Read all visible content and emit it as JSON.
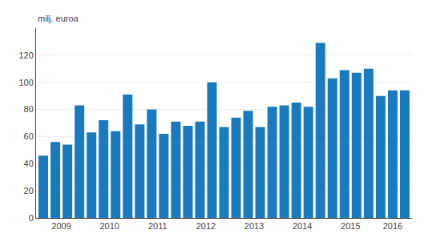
{
  "chart_data": {
    "type": "bar",
    "ylabel": "milj. euroa",
    "categories": [
      "2009",
      null,
      null,
      null,
      "2010",
      null,
      null,
      null,
      "2011",
      null,
      null,
      null,
      "2012",
      null,
      null,
      null,
      "2013",
      null,
      null,
      null,
      "2014",
      null,
      null,
      null,
      "2015",
      null,
      null,
      null,
      "2016",
      null,
      null
    ],
    "values": [
      46,
      56,
      54,
      83,
      63,
      72,
      64,
      91,
      69,
      80,
      62,
      71,
      68,
      71,
      100,
      67,
      74,
      79,
      67,
      82,
      83,
      85,
      82,
      129,
      103,
      109,
      107,
      110,
      90,
      94,
      94
    ],
    "color": "#1a7abf",
    "ylim": [
      0,
      140
    ],
    "yticks": [
      0,
      20,
      40,
      60,
      80,
      100,
      120
    ],
    "grid": true
  }
}
